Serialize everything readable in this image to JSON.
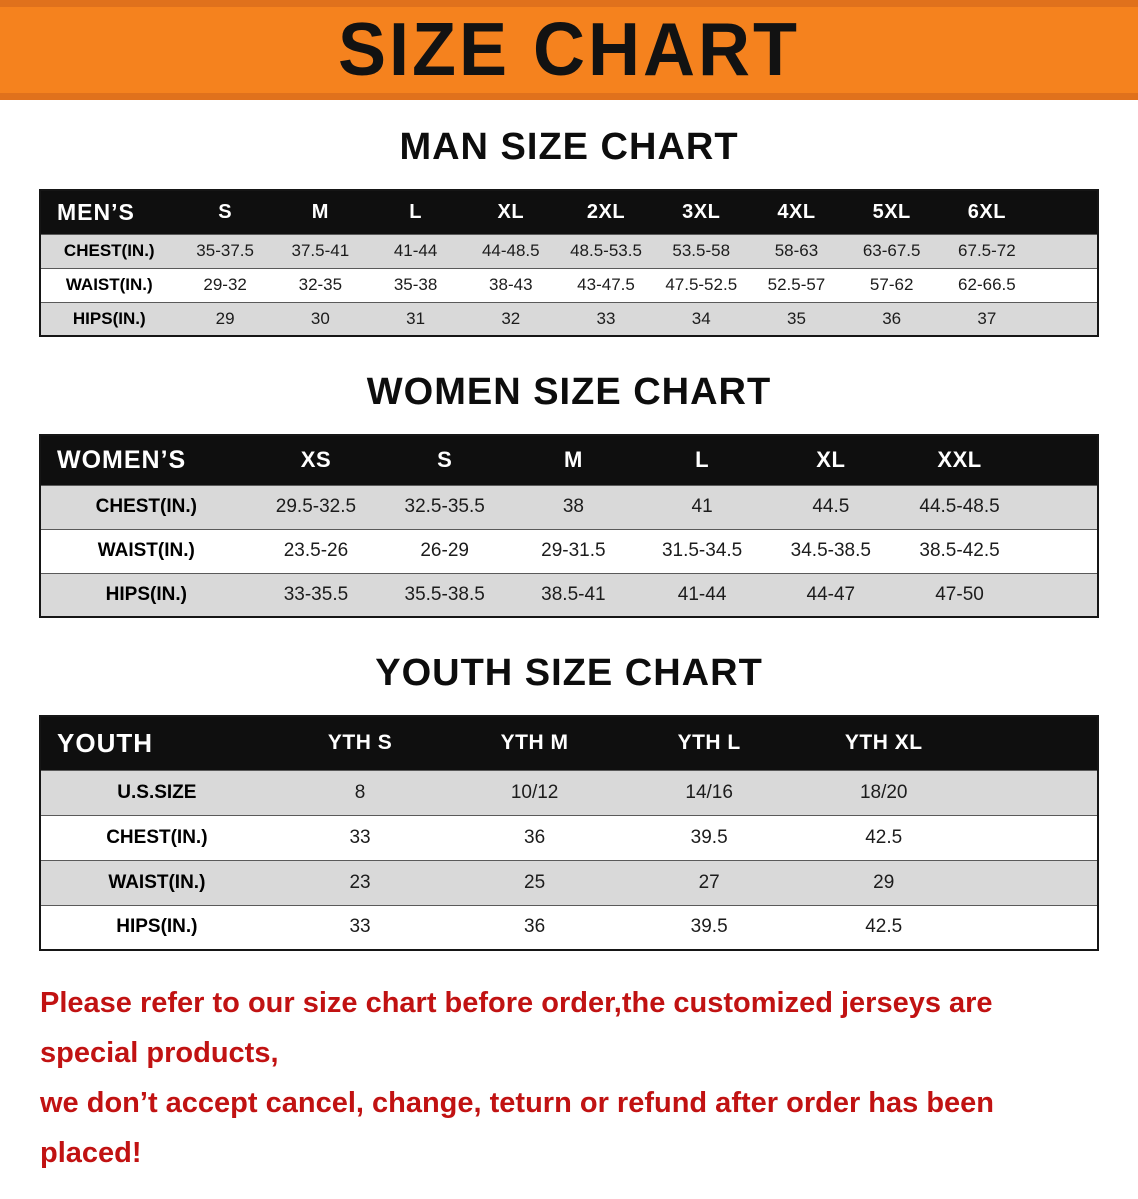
{
  "banner": {
    "title": "SIZE CHART",
    "bg_color": "#f5821e"
  },
  "tables": [
    {
      "heading": "MAN SIZE CHART",
      "header": [
        "MEN’S",
        "S",
        "M",
        "L",
        "XL",
        "2XL",
        "3XL",
        "4XL",
        "5XL",
        "6XL"
      ],
      "rows": [
        {
          "label": "CHEST(IN.)",
          "values": [
            "35-37.5",
            "37.5-41",
            "41-44",
            "44-48.5",
            "48.5-53.5",
            "53.5-58",
            "58-63",
            "63-67.5",
            "67.5-72"
          ]
        },
        {
          "label": "WAIST(IN.)",
          "values": [
            "29-32",
            "32-35",
            "35-38",
            "38-43",
            "43-47.5",
            "47.5-52.5",
            "52.5-57",
            "57-62",
            "62-66.5"
          ]
        },
        {
          "label": "HIPS(IN.)",
          "values": [
            "29",
            "30",
            "31",
            "32",
            "33",
            "34",
            "35",
            "36",
            "37"
          ]
        }
      ]
    },
    {
      "heading": "WOMEN SIZE CHART",
      "header": [
        "WOMEN’S",
        "XS",
        "S",
        "M",
        "L",
        "XL",
        "XXL"
      ],
      "rows": [
        {
          "label": "CHEST(IN.)",
          "values": [
            "29.5-32.5",
            "32.5-35.5",
            "38",
            "41",
            "44.5",
            "44.5-48.5"
          ]
        },
        {
          "label": "WAIST(IN.)",
          "values": [
            "23.5-26",
            "26-29",
            "29-31.5",
            "31.5-34.5",
            "34.5-38.5",
            "38.5-42.5"
          ]
        },
        {
          "label": "HIPS(IN.)",
          "values": [
            "33-35.5",
            "35.5-38.5",
            "38.5-41",
            "41-44",
            "44-47",
            "47-50"
          ]
        }
      ]
    },
    {
      "heading": "YOUTH SIZE CHART",
      "header": [
        "YOUTH",
        "YTH S",
        "YTH M",
        "YTH L",
        "YTH XL"
      ],
      "rows": [
        {
          "label": "U.S.SIZE",
          "values": [
            "8",
            "10/12",
            "14/16",
            "18/20"
          ]
        },
        {
          "label": "CHEST(IN.)",
          "values": [
            "33",
            "36",
            "39.5",
            "42.5"
          ]
        },
        {
          "label": "WAIST(IN.)",
          "values": [
            "23",
            "25",
            "27",
            "29"
          ]
        },
        {
          "label": "HIPS(IN.)",
          "values": [
            "33",
            "36",
            "39.5",
            "42.5"
          ]
        }
      ]
    }
  ],
  "disclaimer": {
    "line1": "Please refer to our size chart before order,the customized jerseys are special products,",
    "line2": "we don’t accept cancel, change, teturn or refund after order has been placed!",
    "color": "#c11212"
  }
}
